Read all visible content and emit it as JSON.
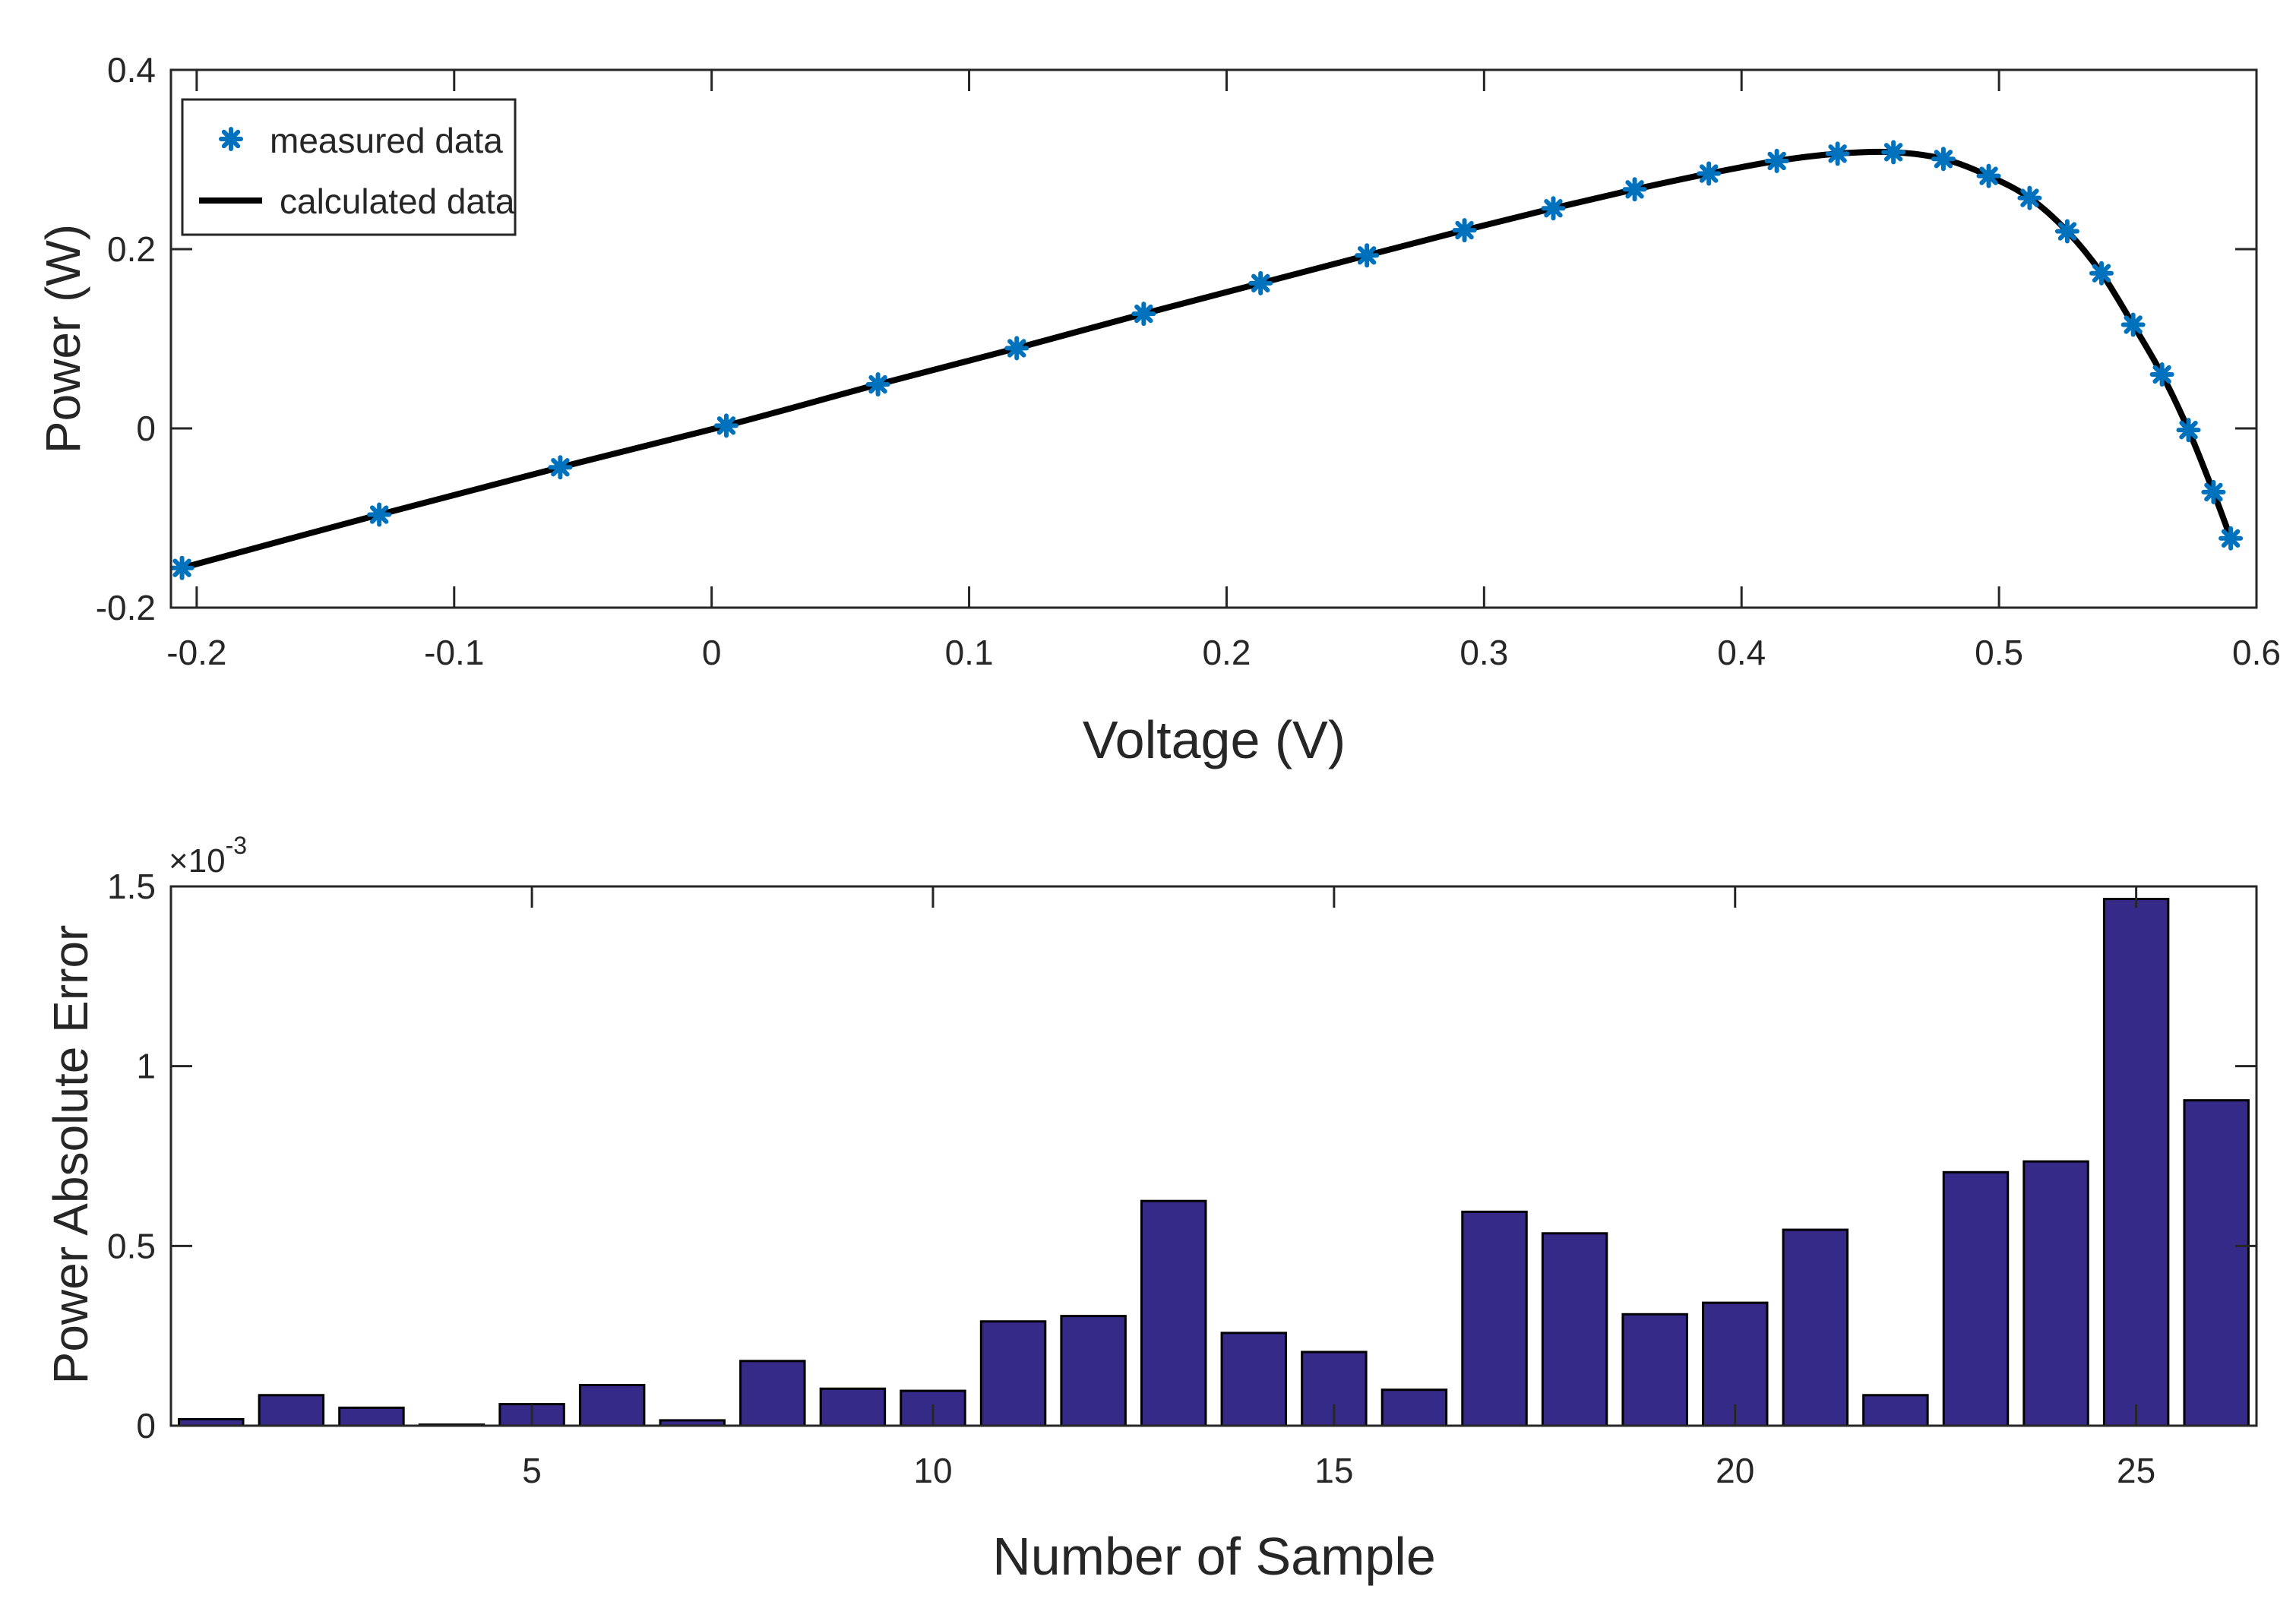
{
  "chart_data": [
    {
      "type": "line",
      "title": "",
      "xlabel": "Voltage (V)",
      "ylabel": "Power  (W)",
      "xlim": [
        -0.21,
        0.6
      ],
      "ylim": [
        -0.2,
        0.4
      ],
      "xticks": [
        -0.2,
        -0.1,
        0,
        0.1,
        0.2,
        0.3,
        0.4,
        0.5,
        0.6
      ],
      "xtick_labels": [
        "-0.2",
        "-0.1",
        "0",
        "0.1",
        "0.2",
        "0.3",
        "0.4",
        "0.5",
        "0.6"
      ],
      "yticks": [
        -0.2,
        0,
        0.2,
        0.4
      ],
      "ytick_labels": [
        "-0.2",
        "0",
        "0.2",
        "0.4"
      ],
      "legend_position": "top-left",
      "series": [
        {
          "name": "measured data",
          "style": "markers-asterisk",
          "color": "#0072BD",
          "x": [
            -0.2057,
            -0.1291,
            -0.0588,
            0.0057,
            0.0646,
            0.1185,
            0.1678,
            0.2132,
            0.2545,
            0.2924,
            0.3269,
            0.3585,
            0.3873,
            0.4137,
            0.4373,
            0.459,
            0.4784,
            0.496,
            0.5119,
            0.5265,
            0.5398,
            0.5521,
            0.5633,
            0.5736,
            0.5833,
            0.59
          ],
          "y": [
            -0.1557,
            -0.0962,
            -0.0434,
            0.0031,
            0.0491,
            0.0895,
            0.1279,
            0.162,
            0.193,
            0.2211,
            0.2456,
            0.2667,
            0.2843,
            0.2984,
            0.3065,
            0.3082,
            0.3006,
            0.2817,
            0.2571,
            0.2199,
            0.1731,
            0.1157,
            0.0602,
            -0.0018,
            -0.0711,
            -0.1227
          ]
        },
        {
          "name": "calculated data",
          "style": "line",
          "color": "#000000",
          "x": [
            -0.2057,
            -0.1291,
            -0.0588,
            0.0057,
            0.0646,
            0.1185,
            0.1678,
            0.2132,
            0.2545,
            0.2924,
            0.3269,
            0.3585,
            0.3873,
            0.4137,
            0.4373,
            0.459,
            0.4784,
            0.496,
            0.5119,
            0.5265,
            0.5398,
            0.5521,
            0.5633,
            0.5736,
            0.5833,
            0.59
          ],
          "y": [
            -0.1557,
            -0.0962,
            -0.0434,
            0.0031,
            0.0491,
            0.0895,
            0.1279,
            0.162,
            0.193,
            0.2211,
            0.2456,
            0.2667,
            0.2843,
            0.2984,
            0.3065,
            0.3082,
            0.3006,
            0.2817,
            0.2571,
            0.2199,
            0.1731,
            0.1157,
            0.0602,
            -0.0018,
            -0.0711,
            -0.1227
          ]
        }
      ]
    },
    {
      "type": "bar",
      "title": "",
      "xlabel": "Number of Sample",
      "ylabel": "Power Absolute Error",
      "exponent_label": "×10",
      "exponent_power": "-3",
      "xlim": [
        0.5,
        26.5
      ],
      "ylim": [
        0,
        1.5
      ],
      "xticks": [
        5,
        10,
        15,
        20,
        25
      ],
      "xtick_labels": [
        "5",
        "10",
        "15",
        "20",
        "25"
      ],
      "yticks": [
        0,
        0.5,
        1,
        1.5
      ],
      "ytick_labels": [
        "0",
        "0.5",
        "1",
        "1.5"
      ],
      "bar_color": "#352A87",
      "categories": [
        1,
        2,
        3,
        4,
        5,
        6,
        7,
        8,
        9,
        10,
        11,
        12,
        13,
        14,
        15,
        16,
        17,
        18,
        19,
        20,
        21,
        22,
        23,
        24,
        25,
        26
      ],
      "values": [
        0.018,
        0.085,
        0.05,
        0.003,
        0.06,
        0.113,
        0.015,
        0.18,
        0.103,
        0.097,
        0.29,
        0.305,
        0.625,
        0.258,
        0.205,
        0.1,
        0.595,
        0.535,
        0.31,
        0.342,
        0.545,
        0.085,
        0.705,
        0.735,
        1.465,
        0.905
      ]
    }
  ]
}
